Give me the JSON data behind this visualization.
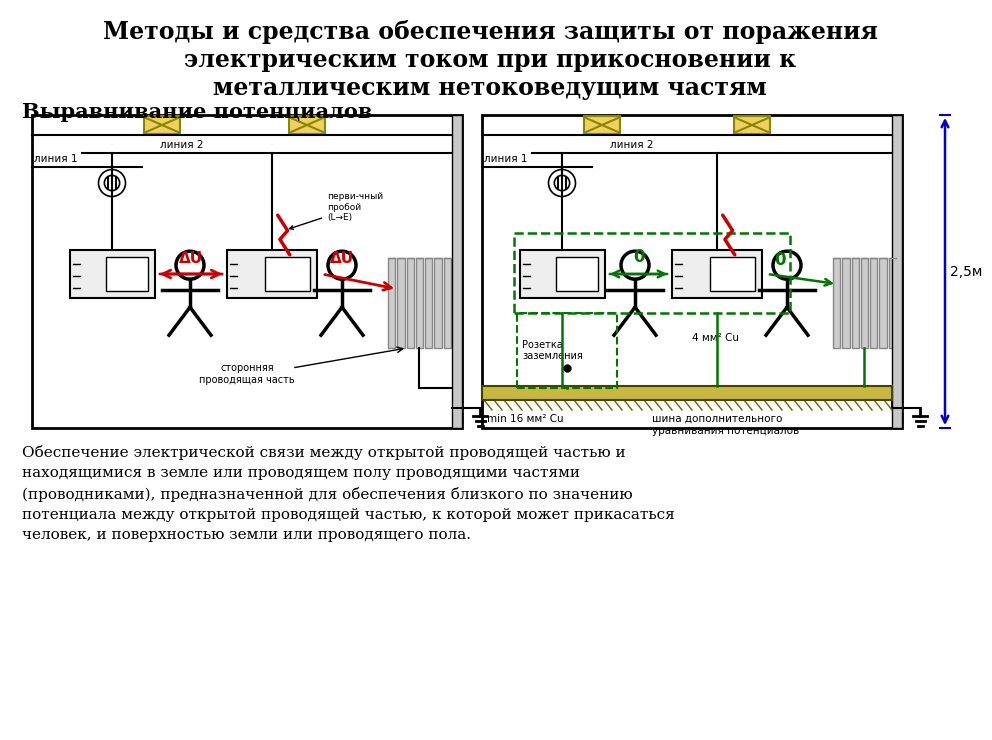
{
  "title_line1": "Методы и средства обеспечения защиты от поражения",
  "title_line2": "электрическим током при прикосновении к",
  "title_line3": "металлическим нетоковедущим частям",
  "subtitle": "Выравнивание потенциалов",
  "bottom_text": "Обеспечение электрической связи между открытой проводящей частью и\nнаходящимися в земле или проводящем полу проводящими частями\n(проводниками), предназначенной для обеспечения близкого по значению\nпотенциала между открытой проводящей частью, к которой может прикасаться\nчеловек, и поверхностью земли или проводящего пола.",
  "bg_color": "#ffffff",
  "red_color": "#cc0000",
  "green_color": "#007700",
  "blue_color": "#0000cc",
  "yellow_fill": "#f0d060",
  "gray_fill": "#d8d8d8",
  "bus_fill": "#c8b840",
  "linia2_left": "линия 2",
  "linia1_left": "линия 1",
  "linia2_right": "линия 2",
  "linia1_right": "линия 1",
  "label_proboi": "перви-чный\nпробой\n(L→E)",
  "label_storonnaya": "сторонняя\nпроводящая часть",
  "label_rozetka": "Розетка\nзаземления",
  "label_4mm": "4 мм² Cu",
  "label_min16": "min 16 мм² Cu",
  "label_shina": "шина дополнительного\nуравнивания потенциалов",
  "label_25m": "2,5м",
  "label_delta_u": "ΔU",
  "label_zero": "0"
}
